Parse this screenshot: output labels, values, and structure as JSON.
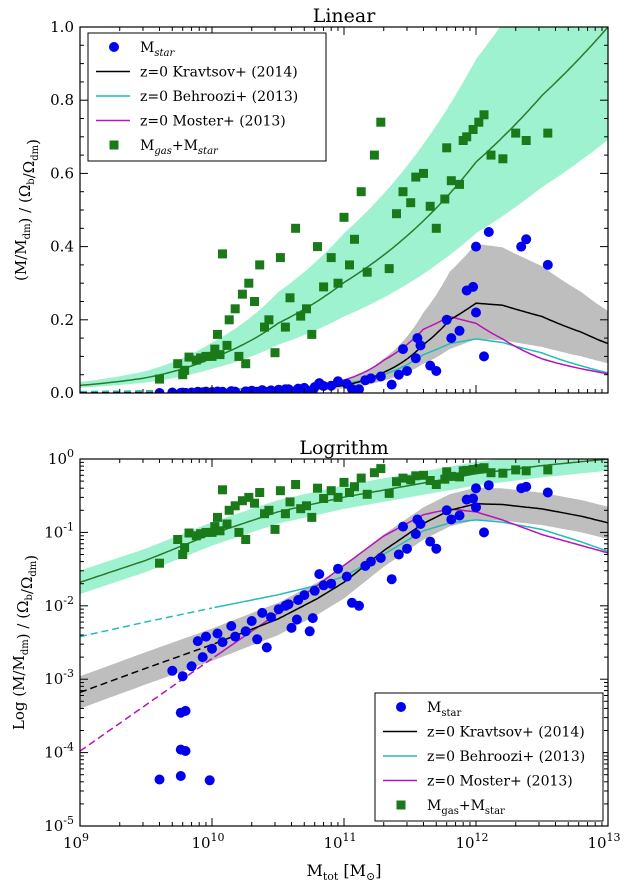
{
  "chart_data": [
    {
      "type": "scatter",
      "title": "Linear",
      "ylabel": "(M/M_dm) / (Ω_b/Ω_dm)",
      "xlabel": "",
      "xscale": "log",
      "yscale": "linear",
      "xlim": [
        1000000000.0,
        10000000000000.0
      ],
      "ylim": [
        0,
        1.0
      ],
      "yticks": [
        "0.0",
        "0.2",
        "0.4",
        "0.6",
        "0.8",
        "1.0"
      ],
      "grid": false,
      "legend": {
        "position": "top-left",
        "entries": [
          "Mstar",
          "z=0 Kravtsov+ (2014)",
          "z=0 Behroozi+ (2013)",
          "z=0 Moster+ (2013)",
          "Mgas+Mstar"
        ]
      }
    },
    {
      "type": "scatter",
      "title": "Logrithm",
      "ylabel": "Log (M/M_dm) / (Ω_b/Ω_dm)",
      "xlabel": "M_tot [M_⊙]",
      "xscale": "log",
      "yscale": "log",
      "xlim": [
        1000000000.0,
        10000000000000.0
      ],
      "ylim": [
        1e-05,
        1
      ],
      "xticks": [
        "10^9",
        "10^10",
        "10^11",
        "10^12",
        "10^13"
      ],
      "yticks": [
        "10^-5",
        "10^-4",
        "10^-3",
        "10^-2",
        "10^-1",
        "10^0"
      ],
      "grid": false,
      "legend": {
        "position": "bottom-right",
        "entries": [
          "Mstar",
          "z=0 Kravtsov+ (2014)",
          "z=0 Behroozi+ (2013)",
          "z=0 Moster+ (2013)",
          "Mgas+Mstar"
        ]
      }
    }
  ],
  "series": {
    "mstar": {
      "name": "Mstar",
      "color": "#0000ee",
      "points": [
        [
          4000000000.0,
          4.3e-05
        ],
        [
          5800000000.0,
          4.8e-05
        ],
        [
          9600000000.0,
          4.2e-05
        ],
        [
          5800000000.0,
          0.00011
        ],
        [
          6300000000.0,
          0.000105
        ],
        [
          5800000000.0,
          0.00035
        ],
        [
          6300000000.0,
          0.00037
        ],
        [
          6000000000.0,
          0.0011
        ],
        [
          7000000000.0,
          0.0015
        ],
        [
          5000000000.0,
          0.0013
        ],
        [
          8500000000.0,
          0.002
        ],
        [
          10000000000.0,
          0.0026
        ],
        [
          12000000000.0,
          0.0032
        ],
        [
          7800000000.0,
          0.0033
        ],
        [
          9000000000.0,
          0.0038
        ],
        [
          11000000000.0,
          0.0042
        ],
        [
          15000000000.0,
          0.0038
        ],
        [
          18000000000.0,
          0.0045
        ],
        [
          22000000000.0,
          0.0035
        ],
        [
          26000000000.0,
          0.0027
        ],
        [
          14000000000.0,
          0.0053
        ],
        [
          20000000000.0,
          0.0062
        ],
        [
          28000000000.0,
          0.007
        ],
        [
          32000000000.0,
          0.009
        ],
        [
          38000000000.0,
          0.0105
        ],
        [
          24000000000.0,
          0.008
        ],
        [
          45000000000.0,
          0.012
        ],
        [
          50000000000.0,
          0.014
        ],
        [
          60000000000.0,
          0.016
        ],
        [
          40000000000.0,
          0.005
        ],
        [
          44000000000.0,
          0.0065
        ],
        [
          55000000000.0,
          0.0045
        ],
        [
          58000000000.0,
          0.0068
        ],
        [
          36000000000.0,
          0.01
        ],
        [
          70000000000.0,
          0.019
        ],
        [
          80000000000.0,
          0.02
        ],
        [
          65000000000.0,
          0.027
        ],
        [
          90000000000.0,
          0.032
        ],
        [
          105000000000.0,
          0.025
        ],
        [
          115000000000.0,
          0.011
        ],
        [
          130000000000.0,
          0.01
        ],
        [
          145000000000.0,
          0.035
        ],
        [
          160000000000.0,
          0.04
        ],
        [
          190000000000.0,
          0.045
        ],
        [
          230000000000.0,
          0.023
        ],
        [
          260000000000.0,
          0.05
        ],
        [
          300000000000.0,
          0.06
        ],
        [
          350000000000.0,
          0.095
        ],
        [
          450000000000.0,
          0.075
        ],
        [
          380000000000.0,
          0.13
        ],
        [
          500000000000.0,
          0.06
        ],
        [
          650000000000.0,
          0.15
        ],
        [
          750000000000.0,
          0.17
        ],
        [
          850000000000.0,
          0.28
        ],
        [
          950000000000.0,
          0.29
        ],
        [
          1150000000000.0,
          0.1
        ],
        [
          600000000000.0,
          0.2
        ],
        [
          1250000000000.0,
          0.44
        ],
        [
          2200000000000.0,
          0.4
        ],
        [
          2400000000000.0,
          0.42
        ],
        [
          3500000000000.0,
          0.35
        ],
        [
          1000000000000.0,
          0.22
        ],
        [
          280000000000.0,
          0.12
        ],
        [
          360000000000.0,
          0.15
        ],
        [
          1000000000000.0,
          0.4
        ]
      ]
    },
    "mgas_mstar": {
      "name": "Mgas+Mstar",
      "color": "#1a7a1a",
      "points": [
        [
          4000000000.0,
          0.038
        ],
        [
          5500000000.0,
          0.08
        ],
        [
          6000000000.0,
          0.05
        ],
        [
          6200000000.0,
          0.062
        ],
        [
          6700000000.0,
          0.098
        ],
        [
          7600000000.0,
          0.09
        ],
        [
          8200000000.0,
          0.096
        ],
        [
          9000000000.0,
          0.1
        ],
        [
          10000000000.0,
          0.1
        ],
        [
          10500000000.0,
          0.12
        ],
        [
          11000000000.0,
          0.16
        ],
        [
          11500000000.0,
          0.105
        ],
        [
          12000000000.0,
          0.38
        ],
        [
          13500000000.0,
          0.2
        ],
        [
          15000000000.0,
          0.23
        ],
        [
          13000000000.0,
          0.13
        ],
        [
          17000000000.0,
          0.27
        ],
        [
          19000000000.0,
          0.3
        ],
        [
          16000000000.0,
          0.1
        ],
        [
          18000000000.0,
          0.08
        ],
        [
          21000000000.0,
          0.25
        ],
        [
          23000000000.0,
          0.35
        ],
        [
          25000000000.0,
          0.18
        ],
        [
          27000000000.0,
          0.2
        ],
        [
          30000000000.0,
          0.11
        ],
        [
          33000000000.0,
          0.37
        ],
        [
          36000000000.0,
          0.18
        ],
        [
          39000000000.0,
          0.26
        ],
        [
          43000000000.0,
          0.45
        ],
        [
          47000000000.0,
          0.21
        ],
        [
          52000000000.0,
          0.23
        ],
        [
          57000000000.0,
          0.16
        ],
        [
          63000000000.0,
          0.4
        ],
        [
          70000000000.0,
          0.29
        ],
        [
          80000000000.0,
          0.37
        ],
        [
          90000000000.0,
          0.3
        ],
        [
          100000000000.0,
          0.48
        ],
        [
          110000000000.0,
          0.35
        ],
        [
          120000000000.0,
          0.42
        ],
        [
          135000000000.0,
          0.55
        ],
        [
          150000000000.0,
          0.33
        ],
        [
          170000000000.0,
          0.65
        ],
        [
          190000000000.0,
          0.74
        ],
        [
          220000000000.0,
          0.34
        ],
        [
          250000000000.0,
          0.49
        ],
        [
          280000000000.0,
          0.55
        ],
        [
          320000000000.0,
          0.52
        ],
        [
          350000000000.0,
          0.59
        ],
        [
          400000000000.0,
          0.6
        ],
        [
          450000000000.0,
          0.51
        ],
        [
          500000000000.0,
          0.45
        ],
        [
          580000000000.0,
          0.53
        ],
        [
          650000000000.0,
          0.58
        ],
        [
          750000000000.0,
          0.57
        ],
        [
          850000000000.0,
          0.7
        ],
        [
          950000000000.0,
          0.72
        ],
        [
          1050000000000.0,
          0.74
        ],
        [
          1150000000000.0,
          0.76
        ],
        [
          1300000000000.0,
          0.65
        ],
        [
          1600000000000.0,
          0.64
        ],
        [
          2000000000000.0,
          0.71
        ],
        [
          2400000000000.0,
          0.69
        ],
        [
          3500000000000.0,
          0.71
        ],
        [
          600000000000.0,
          0.67
        ],
        [
          800000000000.0,
          0.69
        ]
      ]
    },
    "kravtsov": {
      "name": "z=0 Kravtsov+ (2014)",
      "color": "#000000"
    },
    "behroozi": {
      "name": "z=0 Behroozi+ (2013)",
      "color": "#22bbbb"
    },
    "moster": {
      "name": "z=0 Moster+ (2013)",
      "color": "#bb11bb"
    },
    "colors": {
      "band_green": "#9ff2cf",
      "band_grey": "#bebebe",
      "gas_line": "#2a7a2a"
    }
  }
}
